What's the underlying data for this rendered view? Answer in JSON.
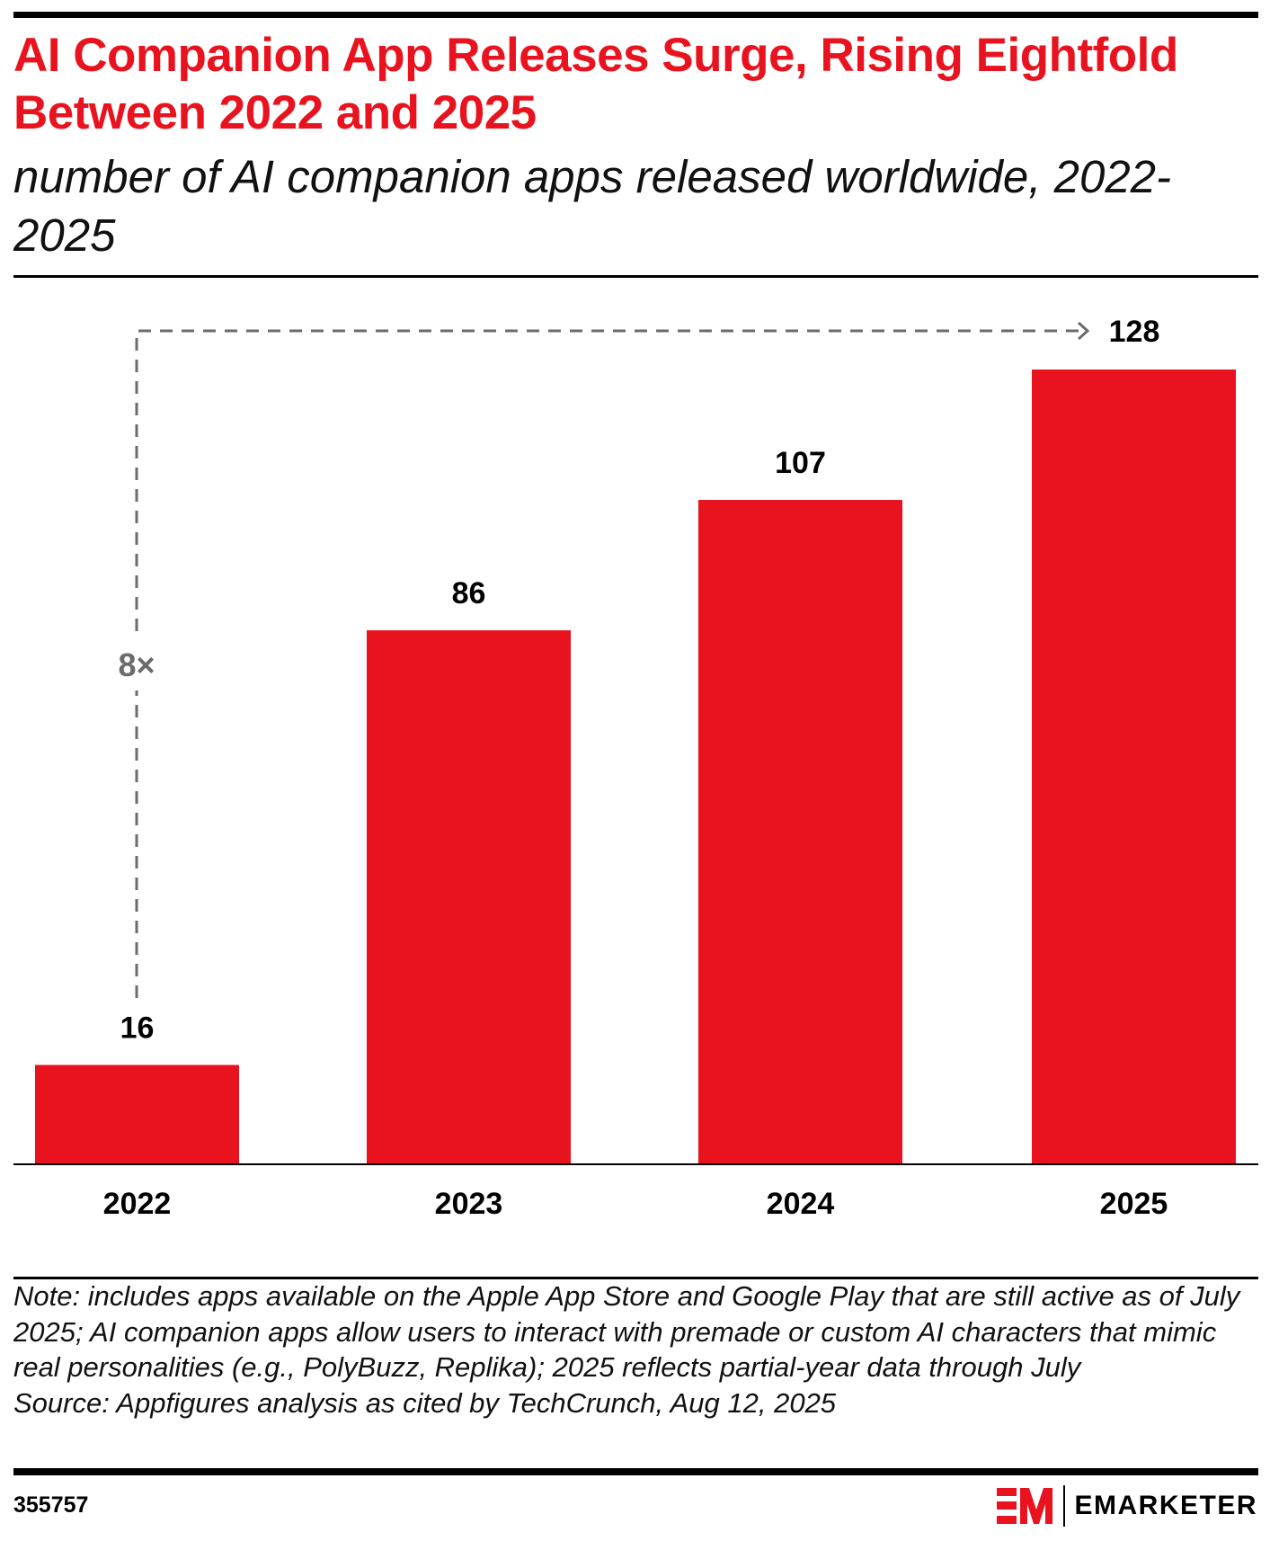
{
  "header": {
    "title": "AI Companion App Releases Surge, Rising Eightfold Between 2022 and 2025",
    "subtitle": "number of AI companion apps released worldwide, 2022-2025"
  },
  "chart_data": {
    "type": "bar",
    "categories": [
      "2022",
      "2023",
      "2024",
      "2025"
    ],
    "values": [
      16,
      86,
      107,
      128
    ],
    "data_labels": [
      "16",
      "86",
      "107",
      "128"
    ],
    "title": "AI Companion App Releases Surge, Rising Eightfold Between 2022 and 2025",
    "subtitle": "number of AI companion apps released worldwide, 2022-2025",
    "annotation": "8×",
    "ylim": [
      0,
      128
    ],
    "grid": false,
    "bar_color": "#e8131e"
  },
  "footer": {
    "note": "Note: includes apps available on the Apple App Store and Google Play that are still active as of July 2025; AI companion apps allow users to interact with premade or custom AI characters that mimic real personalities (e.g., PolyBuzz, Replika); 2025 reflects partial-year data through July",
    "source": "Source: Appfigures analysis as cited by TechCrunch, Aug 12, 2025",
    "chart_id": "355757",
    "brand": "EMARKETER"
  }
}
